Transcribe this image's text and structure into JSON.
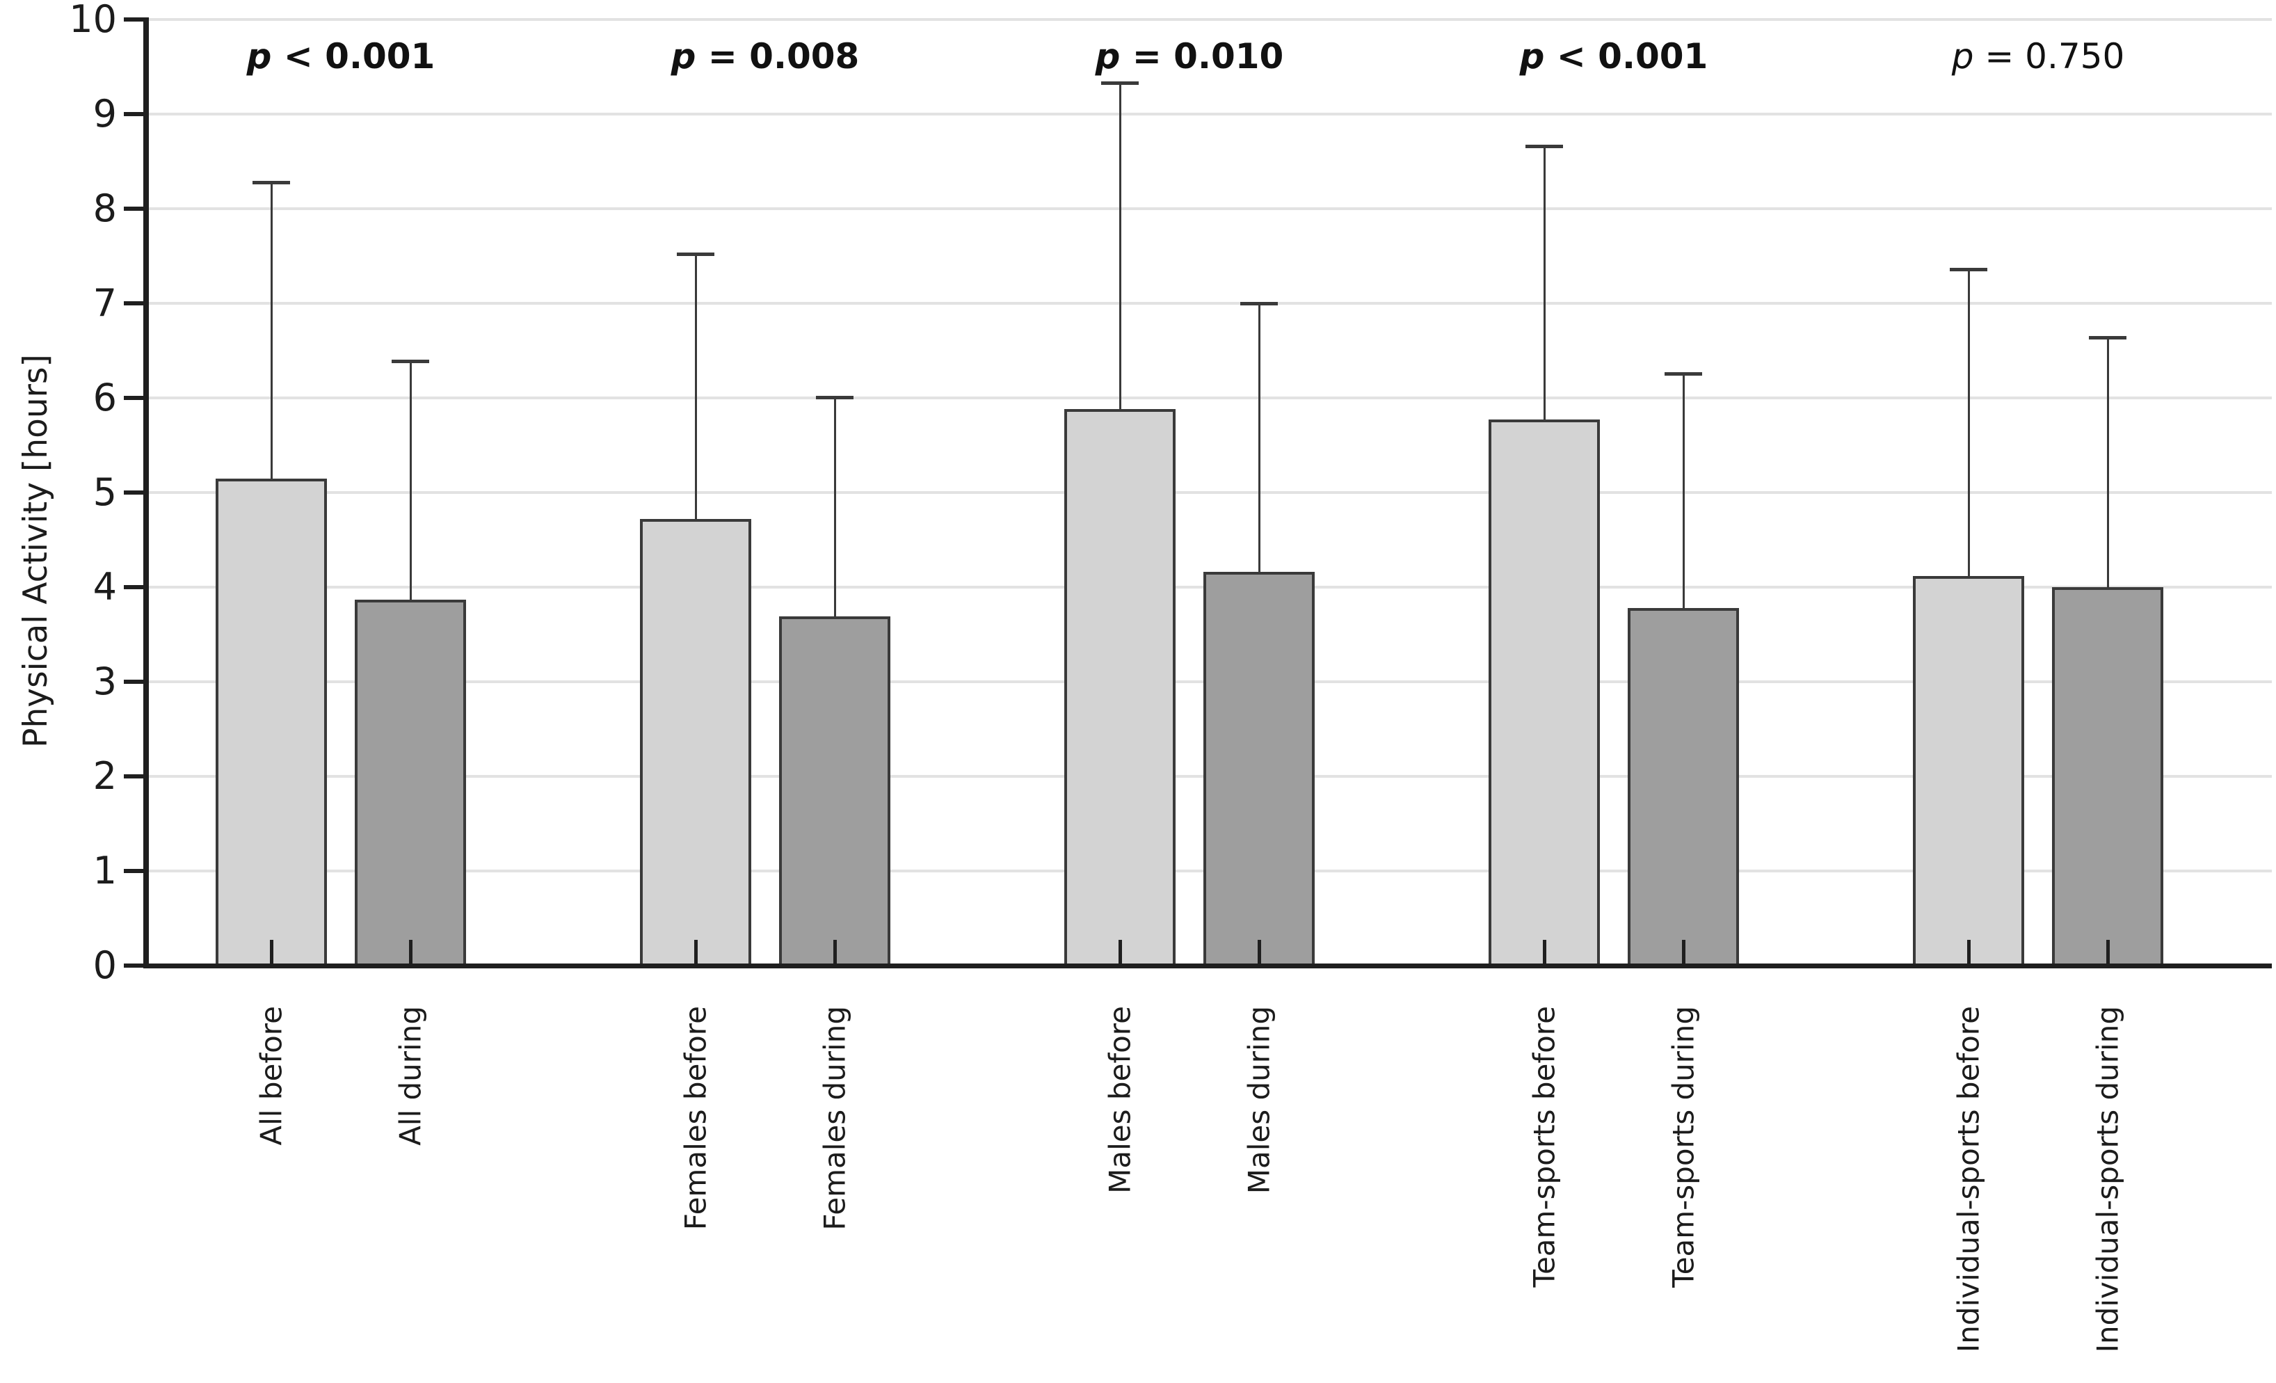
{
  "chart_data": {
    "type": "bar",
    "title": "",
    "xlabel": "",
    "ylabel": "Physical Activity [hours]",
    "ylim": [
      0,
      10
    ],
    "yticks": [
      0,
      1,
      2,
      3,
      4,
      5,
      6,
      7,
      8,
      9,
      10
    ],
    "grid": "horizontal light-gray lines at every integer",
    "legend": "none",
    "error_bars": "upper standard-deviation whiskers with caps",
    "bar_colors": {
      "before": "#d3d3d3",
      "during": "#9e9e9e"
    },
    "axis_color": "#1f1f1f",
    "grid_color": "#e2e2e2",
    "categories": [
      "All before",
      "All during",
      "Females before",
      "Females during",
      "Males before",
      "Males during",
      "Team-sports before",
      "Team-sports during",
      "Individual-sports before",
      "Individual-sports during"
    ],
    "values": [
      5.15,
      3.87,
      4.72,
      3.69,
      5.88,
      4.16,
      5.77,
      3.78,
      4.12,
      4.0
    ],
    "errors_upper": [
      3.13,
      2.52,
      2.8,
      2.32,
      3.45,
      2.84,
      2.89,
      2.48,
      3.24,
      2.64
    ],
    "groups": [
      {
        "name": "All",
        "p_label": "p < 0.001",
        "p_prefix": "p",
        "p_rest": " < 0.001",
        "p_bold": true,
        "bars": [
          {
            "label": "All before",
            "period": "before",
            "value": 5.15,
            "sd": 3.13
          },
          {
            "label": "All during",
            "period": "during",
            "value": 3.87,
            "sd": 2.52
          }
        ]
      },
      {
        "name": "Females",
        "p_label": "p = 0.008",
        "p_prefix": "p",
        "p_rest": " = 0.008",
        "p_bold": true,
        "bars": [
          {
            "label": "Females before",
            "period": "before",
            "value": 4.72,
            "sd": 2.8
          },
          {
            "label": "Females during",
            "period": "during",
            "value": 3.69,
            "sd": 2.32
          }
        ]
      },
      {
        "name": "Males",
        "p_label": "p = 0.010",
        "p_prefix": "p",
        "p_rest": " = 0.010",
        "p_bold": true,
        "bars": [
          {
            "label": "Males before",
            "period": "before",
            "value": 5.88,
            "sd": 3.45
          },
          {
            "label": "Males during",
            "period": "during",
            "value": 4.16,
            "sd": 2.84
          }
        ]
      },
      {
        "name": "Team-sports",
        "p_label": "p < 0.001",
        "p_prefix": "p",
        "p_rest": " < 0.001",
        "p_bold": true,
        "bars": [
          {
            "label": "Team-sports before",
            "period": "before",
            "value": 5.77,
            "sd": 2.89
          },
          {
            "label": "Team-sports during",
            "period": "during",
            "value": 3.78,
            "sd": 2.48
          }
        ]
      },
      {
        "name": "Individual-sports",
        "p_label": "p = 0.750",
        "p_prefix": "p",
        "p_rest": " = 0.750",
        "p_bold": false,
        "bars": [
          {
            "label": "Individual-sports before",
            "period": "before",
            "value": 4.12,
            "sd": 3.24
          },
          {
            "label": "Individual-sports during",
            "period": "during",
            "value": 4.0,
            "sd": 2.64
          }
        ]
      }
    ]
  }
}
